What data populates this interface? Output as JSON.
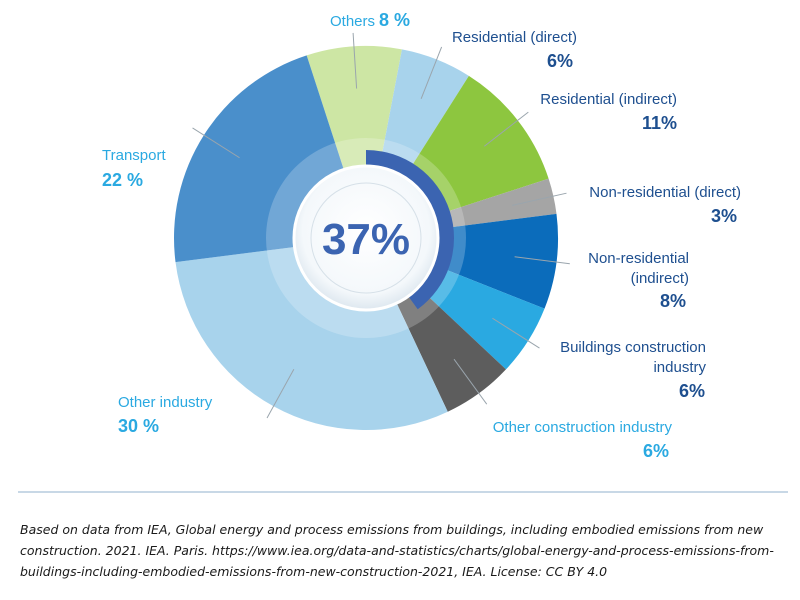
{
  "chart_data": {
    "type": "pie",
    "center_value": "37%",
    "segments": [
      {
        "name": "Others",
        "pct": 8,
        "label": "Others",
        "value_label": "8 %",
        "color": "#cde6a4"
      },
      {
        "name": "Residential (direct)",
        "pct": 6,
        "label": "Residential (direct)",
        "value_label": "6%",
        "color": "#a8d3ec"
      },
      {
        "name": "Residential (indirect)",
        "pct": 11,
        "label": "Residential (indirect)",
        "value_label": "11%",
        "color": "#8dc63f"
      },
      {
        "name": "Non-residential (direct)",
        "pct": 3,
        "label": "Non-residential (direct)",
        "value_label": "3%",
        "color": "#a5a5a5"
      },
      {
        "name": "Non-residential (indirect)",
        "pct": 8,
        "label": "Non-residential (indirect)",
        "value_label": "8%",
        "color": "#0b6cbb"
      },
      {
        "name": "Buildings construction industry",
        "pct": 6,
        "label": "Buildings construction industry",
        "value_label": "6%",
        "color": "#2aa9e1"
      },
      {
        "name": "Other construction industry",
        "pct": 6,
        "label": "Other construction industry",
        "value_label": "6%",
        "color": "#5d5d5d"
      },
      {
        "name": "Other industry",
        "pct": 30,
        "label": "Other industry",
        "value_label": "30 %",
        "color": "#a8d3ec"
      },
      {
        "name": "Transport",
        "pct": 22,
        "label": "Transport",
        "value_label": "22 %",
        "color": "#4a8fcb"
      }
    ]
  },
  "caption": "Based on data from IEA, Global energy and process emissions from buildings, including embodied emissions from new construction. 2021. IEA. Paris. https://www.iea.org/data-and-statistics/charts/global-energy-and-process-emissions-from-buildings-including-embodied-emissions-from-new-construction-2021, IEA. License: CC BY 4.0"
}
